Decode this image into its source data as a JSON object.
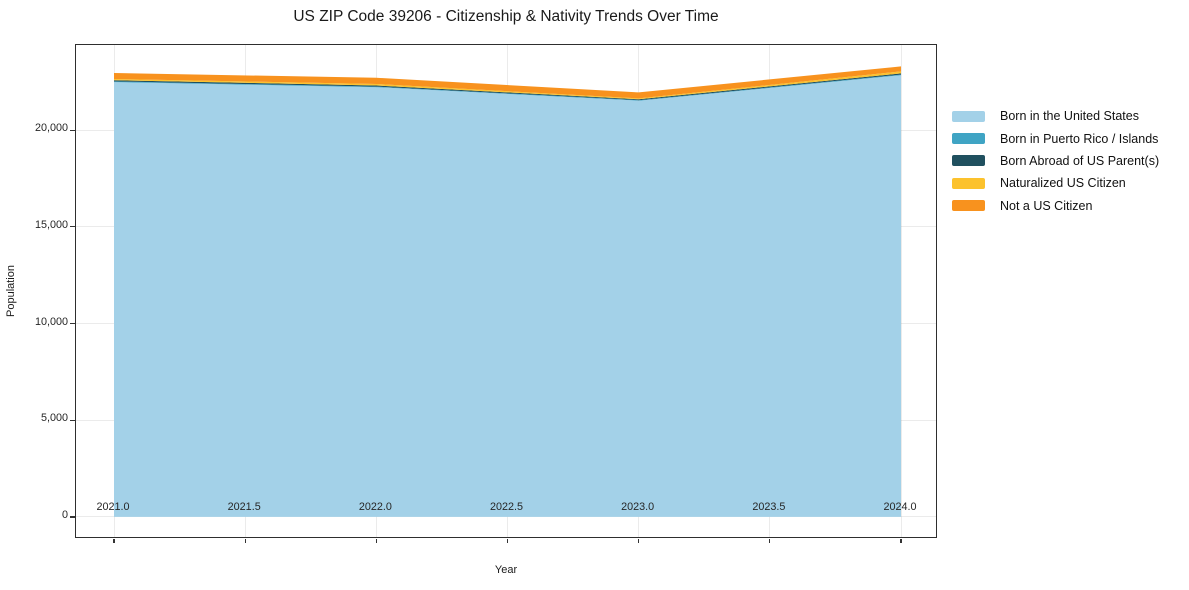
{
  "title": "US ZIP Code 39206 - Citizenship & Nativity Trends Over Time",
  "chart_data": {
    "type": "area",
    "stacked": true,
    "title": "US ZIP Code 39206 - Citizenship & Nativity Trends Over Time",
    "xlabel": "Year",
    "ylabel": "Population",
    "x": [
      2021,
      2022,
      2023,
      2024
    ],
    "series": [
      {
        "name": "Born in the United States",
        "color": "#A3D1E8",
        "values": [
          22480,
          22220,
          21520,
          22840
        ]
      },
      {
        "name": "Born in Puerto Rico / Islands",
        "color": "#3FA4C4",
        "values": [
          40,
          30,
          25,
          30
        ]
      },
      {
        "name": "Born Abroad of US Parent(s)",
        "color": "#20505F",
        "values": [
          60,
          55,
          50,
          60
        ]
      },
      {
        "name": "Naturalized US Citizen",
        "color": "#FCC22D",
        "values": [
          60,
          80,
          45,
          105
        ]
      },
      {
        "name": "Not a US Citizen",
        "color": "#F8921E",
        "values": [
          310,
          320,
          310,
          260
        ]
      }
    ],
    "totals": [
      22950,
      22705,
      21950,
      23295
    ],
    "xlim": [
      2020.855,
      2024.141
    ],
    "ylim": [
      -1140,
      24400
    ],
    "xticks": {
      "values": [
        2021.0,
        2021.5,
        2022.0,
        2022.5,
        2023.0,
        2023.5,
        2024.0
      ],
      "labels": [
        "2021.0",
        "2021.5",
        "2022.0",
        "2022.5",
        "2023.0",
        "2023.5",
        "2024.0"
      ]
    },
    "yticks": {
      "values": [
        0,
        5000,
        10000,
        15000,
        20000
      ],
      "labels": [
        "0",
        "5,000",
        "10,000",
        "15,000",
        "20,000"
      ]
    },
    "grid": true,
    "legend_position": "right"
  }
}
